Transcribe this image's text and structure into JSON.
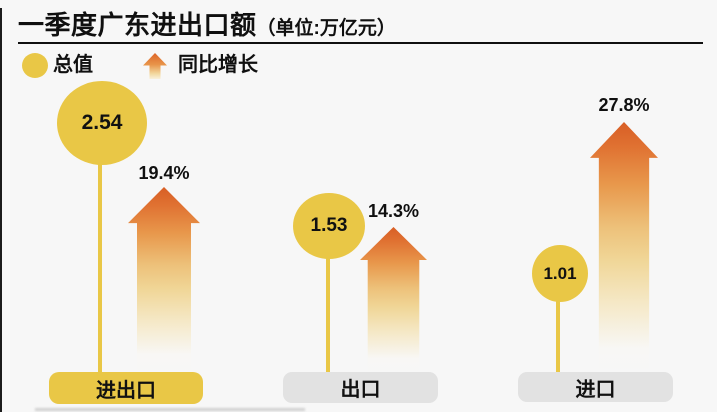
{
  "title": {
    "main": "一季度广东进出口额",
    "unit": "（单位:万亿元）"
  },
  "legend": {
    "total_label": "总值",
    "growth_label": "同比增长"
  },
  "groups": [
    {
      "label": "进出口",
      "value": "2.54",
      "growth": "19.4%"
    },
    {
      "label": "出口",
      "value": "1.53",
      "growth": "14.3%"
    },
    {
      "label": "进口",
      "value": "1.01",
      "growth": "27.8%"
    }
  ],
  "chart_data": {
    "type": "bar",
    "title": "一季度广东进出口额",
    "unit": "万亿元",
    "categories": [
      "进出口",
      "出口",
      "进口"
    ],
    "series": [
      {
        "name": "总值",
        "unit": "万亿元",
        "values": [
          2.54,
          1.53,
          1.01
        ],
        "mark": "yellow-circle"
      },
      {
        "name": "同比增长",
        "unit": "%",
        "values": [
          19.4,
          14.3,
          27.8
        ],
        "mark": "orange-arrow"
      }
    ],
    "legend_position": "top-left",
    "grid": false
  },
  "colors": {
    "yellow": "#E9C746",
    "arrow_top": "#D95F26",
    "arrow_fade": "#F5E8C6",
    "gray_box": "#E2E2E2",
    "background": "#F7F7F7",
    "ink": "#101010"
  }
}
